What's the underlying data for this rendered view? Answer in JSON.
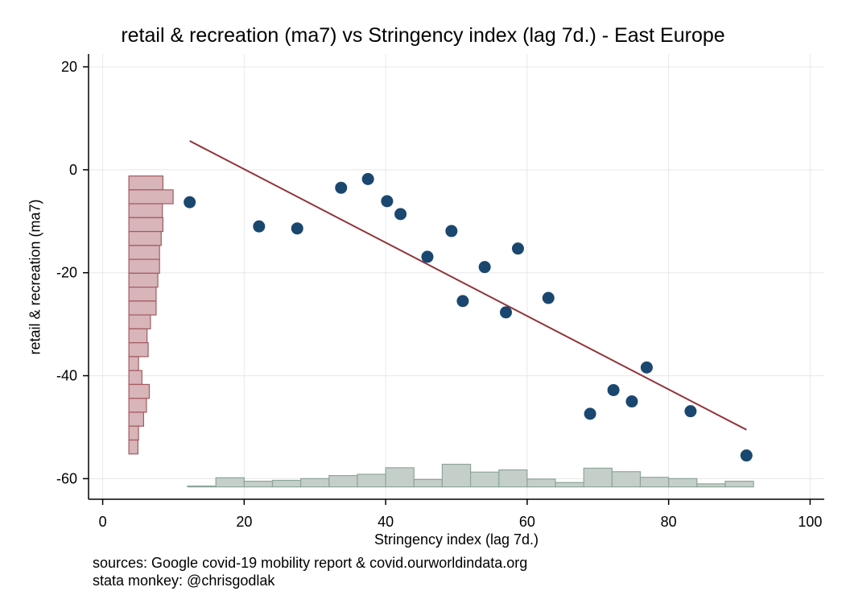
{
  "chart_data": {
    "type": "scatter",
    "title": "retail & recreation (ma7) vs Stringency index (lag 7d.) - East Europe",
    "xlabel": "Stringency index (lag 7d.)",
    "ylabel": "retail & recreation (ma7)",
    "xlim": [
      -2,
      102
    ],
    "ylim": [
      -64,
      22.5
    ],
    "xticks": [
      0,
      20,
      40,
      60,
      80,
      100
    ],
    "yticks": [
      20,
      0,
      -20,
      -40,
      -60
    ],
    "grid": true,
    "points": [
      {
        "x": 12.3,
        "y": -6.3
      },
      {
        "x": 22.1,
        "y": -11.0
      },
      {
        "x": 27.5,
        "y": -11.4
      },
      {
        "x": 33.7,
        "y": -3.5
      },
      {
        "x": 37.5,
        "y": -1.8
      },
      {
        "x": 40.2,
        "y": -6.1
      },
      {
        "x": 42.1,
        "y": -8.6
      },
      {
        "x": 45.9,
        "y": -16.9
      },
      {
        "x": 49.3,
        "y": -11.9
      },
      {
        "x": 50.9,
        "y": -25.5
      },
      {
        "x": 54.0,
        "y": -18.9
      },
      {
        "x": 57.0,
        "y": -27.7
      },
      {
        "x": 58.7,
        "y": -15.3
      },
      {
        "x": 63.0,
        "y": -24.9
      },
      {
        "x": 68.9,
        "y": -47.4
      },
      {
        "x": 72.2,
        "y": -42.8
      },
      {
        "x": 74.8,
        "y": -45.0
      },
      {
        "x": 76.9,
        "y": -38.4
      },
      {
        "x": 83.1,
        "y": -46.9
      },
      {
        "x": 91.0,
        "y": -55.5
      }
    ],
    "fit_line": {
      "x": [
        12.3,
        91.0
      ],
      "y": [
        5.6,
        -50.5
      ]
    },
    "x_histogram": {
      "bin_width": 4,
      "bins": [
        {
          "start": 12,
          "height": 0.2
        },
        {
          "start": 16,
          "height": 2.1
        },
        {
          "start": 20,
          "height": 1.3
        },
        {
          "start": 24,
          "height": 1.5
        },
        {
          "start": 28,
          "height": 1.9
        },
        {
          "start": 32,
          "height": 2.6
        },
        {
          "start": 36,
          "height": 2.9
        },
        {
          "start": 40,
          "height": 4.4
        },
        {
          "start": 44,
          "height": 1.7
        },
        {
          "start": 48,
          "height": 5.2
        },
        {
          "start": 52,
          "height": 3.4
        },
        {
          "start": 56,
          "height": 3.9
        },
        {
          "start": 60,
          "height": 1.8
        },
        {
          "start": 64,
          "height": 1.0
        },
        {
          "start": 68,
          "height": 4.3
        },
        {
          "start": 72,
          "height": 3.5
        },
        {
          "start": 76,
          "height": 2.2
        },
        {
          "start": 80,
          "height": 1.9
        },
        {
          "start": 84,
          "height": 0.7
        },
        {
          "start": 88,
          "height": 1.3
        }
      ]
    },
    "y_histogram": {
      "bin_height": 2.7,
      "bins": [
        {
          "top": -1.2,
          "length": 6.0
        },
        {
          "top": -3.9,
          "length": 7.8
        },
        {
          "top": -6.6,
          "length": 5.9
        },
        {
          "top": -9.3,
          "length": 6.0
        },
        {
          "top": -12.0,
          "length": 5.7
        },
        {
          "top": -14.7,
          "length": 5.4
        },
        {
          "top": -17.4,
          "length": 5.4
        },
        {
          "top": -20.1,
          "length": 5.1
        },
        {
          "top": -22.8,
          "length": 4.8
        },
        {
          "top": -25.5,
          "length": 4.8
        },
        {
          "top": -28.2,
          "length": 3.8
        },
        {
          "top": -30.9,
          "length": 3.2
        },
        {
          "top": -33.6,
          "length": 3.4
        },
        {
          "top": -36.3,
          "length": 1.7
        },
        {
          "top": -39.0,
          "length": 2.3
        },
        {
          "top": -41.7,
          "length": 3.6
        },
        {
          "top": -44.4,
          "length": 3.1
        },
        {
          "top": -47.1,
          "length": 2.6
        },
        {
          "top": -49.8,
          "length": 1.7
        },
        {
          "top": -52.5,
          "length": 1.6
        }
      ]
    },
    "colors": {
      "points": "#1a476f",
      "fit_line": "#90353b",
      "x_hist_fill": "#c5cfc9",
      "x_hist_stroke": "#8ea599",
      "y_hist_fill": "#d7b5b9",
      "y_hist_stroke": "#a4595f",
      "grid": "#e8e8e8",
      "axis": "#000000"
    }
  },
  "notes": {
    "sources": "sources: Google covid-19 mobility report & covid.ourworldindata.org",
    "author": "stata monkey: @chrisgodlak"
  }
}
